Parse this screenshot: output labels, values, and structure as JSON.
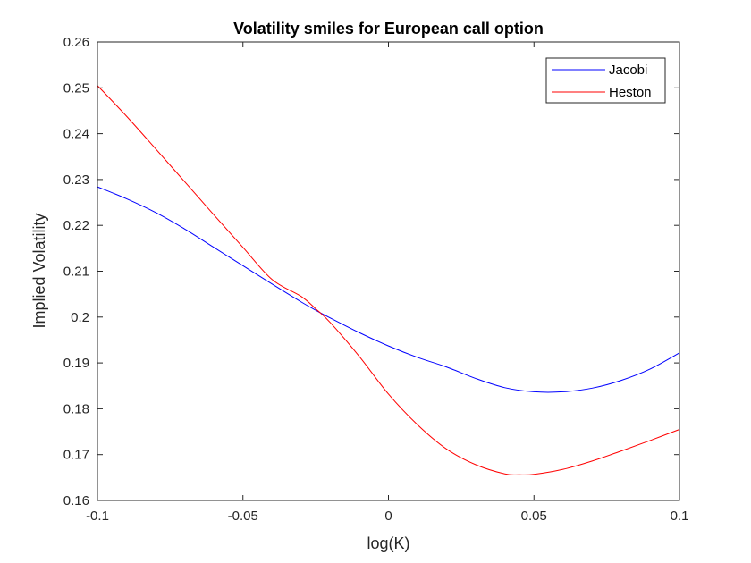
{
  "chart_data": {
    "type": "line",
    "title": "Volatility smiles for European call option",
    "xlabel": "log(K)",
    "ylabel": "Implied Volatility",
    "xlim": [
      -0.1,
      0.1
    ],
    "ylim": [
      0.16,
      0.26
    ],
    "xticks": [
      -0.1,
      -0.05,
      0,
      0.05,
      0.1
    ],
    "xtick_labels": [
      "-0.1",
      "-0.05",
      "0",
      "0.05",
      "0.1"
    ],
    "yticks": [
      0.16,
      0.17,
      0.18,
      0.19,
      0.2,
      0.21,
      0.22,
      0.23,
      0.24,
      0.25,
      0.26
    ],
    "ytick_labels": [
      "0.16",
      "0.17",
      "0.18",
      "0.19",
      "0.2",
      "0.21",
      "0.22",
      "0.23",
      "0.24",
      "0.25",
      "0.26"
    ],
    "grid": false,
    "legend_position": "top-right",
    "series": [
      {
        "name": "Jacobi",
        "color": "#0000ff",
        "x": [
          -0.1,
          -0.09,
          -0.08,
          -0.07,
          -0.06,
          -0.05,
          -0.04,
          -0.03,
          -0.025,
          -0.02,
          -0.01,
          0,
          0.01,
          0.02,
          0.03,
          0.04,
          0.05,
          0.06,
          0.07,
          0.08,
          0.09,
          0.1
        ],
        "y": [
          0.2284,
          0.2258,
          0.2228,
          0.2192,
          0.2152,
          0.2112,
          0.2072,
          0.2033,
          0.2015,
          0.1998,
          0.1966,
          0.1937,
          0.1912,
          0.1891,
          0.1866,
          0.1846,
          0.1837,
          0.1837,
          0.1845,
          0.1862,
          0.1887,
          0.1922
        ]
      },
      {
        "name": "Heston",
        "color": "#ff0000",
        "x": [
          -0.1,
          -0.09,
          -0.08,
          -0.07,
          -0.06,
          -0.05,
          -0.04,
          -0.03,
          -0.025,
          -0.02,
          -0.01,
          0,
          0.01,
          0.02,
          0.03,
          0.04,
          0.045,
          0.05,
          0.06,
          0.07,
          0.08,
          0.09,
          0.1
        ],
        "y": [
          0.2505,
          0.2438,
          0.2367,
          0.2295,
          0.2223,
          0.2152,
          0.2082,
          0.2045,
          0.2018,
          0.1988,
          0.1914,
          0.1832,
          0.1765,
          0.1712,
          0.1678,
          0.1658,
          0.1656,
          0.1657,
          0.1668,
          0.1686,
          0.1708,
          0.1731,
          0.1755
        ]
      }
    ]
  }
}
